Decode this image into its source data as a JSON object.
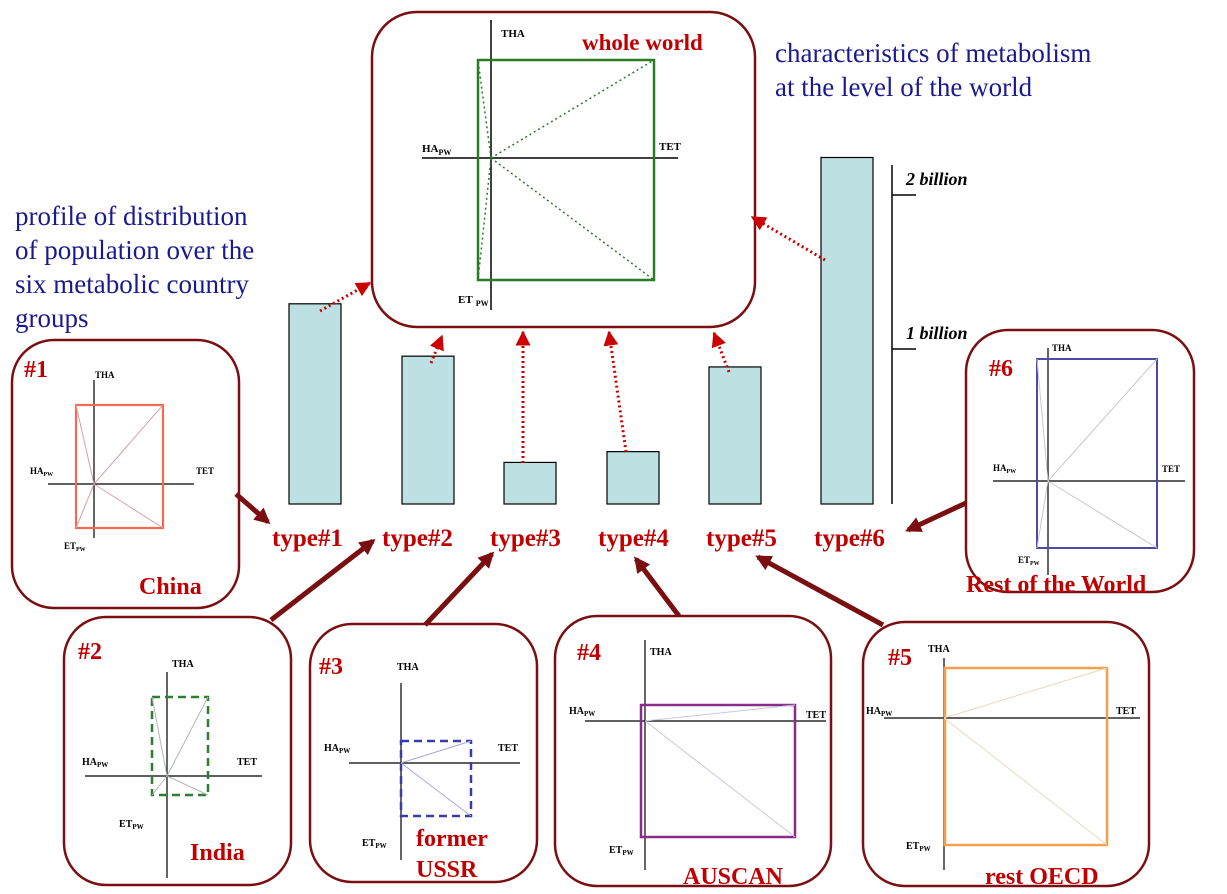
{
  "notes": {
    "world_text_line1": "characteristics of metabolism",
    "world_text_line2": "at the level of the world",
    "profile_line1": "profile of distribution",
    "profile_line2": "of population over the",
    "profile_line3": "six metabolic country",
    "profile_line4": "groups"
  },
  "axes": {
    "tha": "THA",
    "tet": "TET",
    "ha": "HA",
    "et": "ET",
    "sub": "PW"
  },
  "whole_world": {
    "title": "whole world"
  },
  "panels": [
    {
      "num": "#1",
      "name": "China"
    },
    {
      "num": "#2",
      "name": "India"
    },
    {
      "num": "#3",
      "name_line1": "former",
      "name_line2": "USSR"
    },
    {
      "num": "#4",
      "name": "AUSCAN"
    },
    {
      "num": "#5",
      "name": "rest OECD"
    },
    {
      "num": "#6",
      "name": "Rest of the World"
    }
  ],
  "chart_data": {
    "type": "bar",
    "categories": [
      "type#1",
      "type#2",
      "type#3",
      "type#4",
      "type#5",
      "type#6"
    ],
    "values": [
      1.3,
      0.96,
      0.27,
      0.34,
      0.89,
      2.25
    ],
    "scale_labels": [
      "1 billion",
      "2 billion"
    ],
    "ylim": [
      0,
      2.3
    ],
    "bar_color": "#bde0e3"
  },
  "colors": {
    "frame": "#7a0f12",
    "dots": "#cc0000",
    "label_red": "#c00000",
    "china": "#f26b4b",
    "india": "#2e7d32",
    "ussr": "#3a3aa8",
    "auscan": "#8b2a8b",
    "oecd": "#f2a14a",
    "row": "#4a4aa8",
    "world": "#2a7a2a"
  }
}
